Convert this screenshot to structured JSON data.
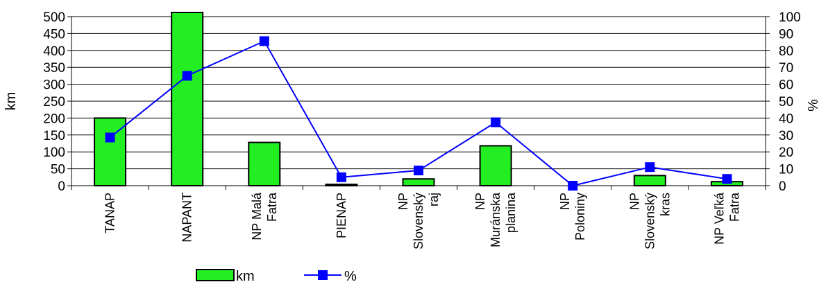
{
  "chart_data": {
    "type": "bar",
    "title": "",
    "categories": [
      [
        "TANAP"
      ],
      [
        "NAPANT"
      ],
      [
        "NP Malá",
        "Fatra"
      ],
      [
        "PIENAP"
      ],
      [
        "NP",
        "Slovenský",
        "raj"
      ],
      [
        "NP",
        "Muránska",
        "planina"
      ],
      [
        "NP",
        "Poloniny"
      ],
      [
        "NP",
        "Slovenský",
        "kras"
      ],
      [
        "NP Veľká",
        "Fatra"
      ]
    ],
    "series": [
      {
        "name": "km",
        "type": "bar",
        "axis": "left",
        "color": "#22ee22",
        "values": [
          200,
          510,
          128,
          4,
          20,
          118,
          0,
          30,
          12
        ]
      },
      {
        "name": "%",
        "type": "line",
        "axis": "right",
        "color": "#0000ff",
        "marker": "square",
        "values": [
          28.5,
          65,
          85.5,
          5,
          9,
          37.5,
          0,
          11,
          4
        ]
      }
    ],
    "ylabel": "km",
    "y2label": "%",
    "ylim": [
      0,
      500
    ],
    "y2lim": [
      0,
      100
    ],
    "yticks": [
      "0",
      "50",
      "100",
      "150",
      "200",
      "250",
      "300",
      "350",
      "400",
      "450",
      "500"
    ],
    "y2ticks": [
      "0",
      "10",
      "20",
      "30",
      "40",
      "50",
      "60",
      "70",
      "80",
      "90",
      "100"
    ],
    "grid": true,
    "legend_position": "bottom"
  }
}
